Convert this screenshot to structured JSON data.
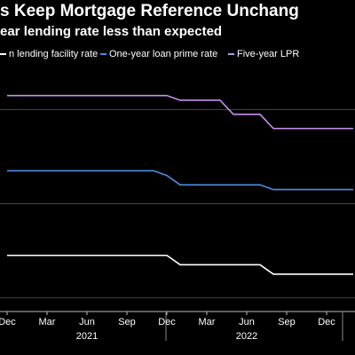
{
  "chart_data": {
    "type": "line",
    "title": "s Keep Mortgage Reference Unchang",
    "subtitle": "ear lending rate less than expected",
    "x": [
      "2020-12",
      "2021-11",
      "2021-12",
      "2022-01",
      "2022-04",
      "2022-05",
      "2022-07",
      "2022-08",
      "2023-02"
    ],
    "series": [
      {
        "name": "n lending facility rate",
        "color": "#ffffff",
        "values": [
          2.95,
          2.95,
          2.95,
          2.85,
          2.85,
          2.85,
          2.85,
          2.75,
          2.75
        ]
      },
      {
        "name": "One-year loan prime rate",
        "color": "#4d8fe6",
        "values": [
          3.85,
          3.85,
          3.8,
          3.7,
          3.7,
          3.7,
          3.7,
          3.65,
          3.65
        ]
      },
      {
        "name": "Five-year LPR",
        "color": "#c98ff0",
        "values": [
          4.65,
          4.65,
          4.65,
          4.6,
          4.6,
          4.45,
          4.45,
          4.3,
          4.3
        ]
      }
    ],
    "xticks": [
      {
        "value": "2020-12",
        "label": "Dec"
      },
      {
        "value": "2021-03",
        "label": "Mar"
      },
      {
        "value": "2021-06",
        "label": "Jun"
      },
      {
        "value": "2021-09",
        "label": "Sep"
      },
      {
        "value": "2021-12",
        "label": "Dec"
      },
      {
        "value": "2022-03",
        "label": "Mar"
      },
      {
        "value": "2022-06",
        "label": "Jun"
      },
      {
        "value": "2022-09",
        "label": "Sep"
      },
      {
        "value": "2022-12",
        "label": "Dec"
      }
    ],
    "year_labels": [
      {
        "value": "2021-06",
        "label": "2021"
      },
      {
        "value": "2022-06",
        "label": "2022"
      }
    ],
    "ylim": [
      2.4,
      5.1
    ],
    "yticks": [
      2.5,
      3.5,
      4.5
    ],
    "grid": true
  }
}
